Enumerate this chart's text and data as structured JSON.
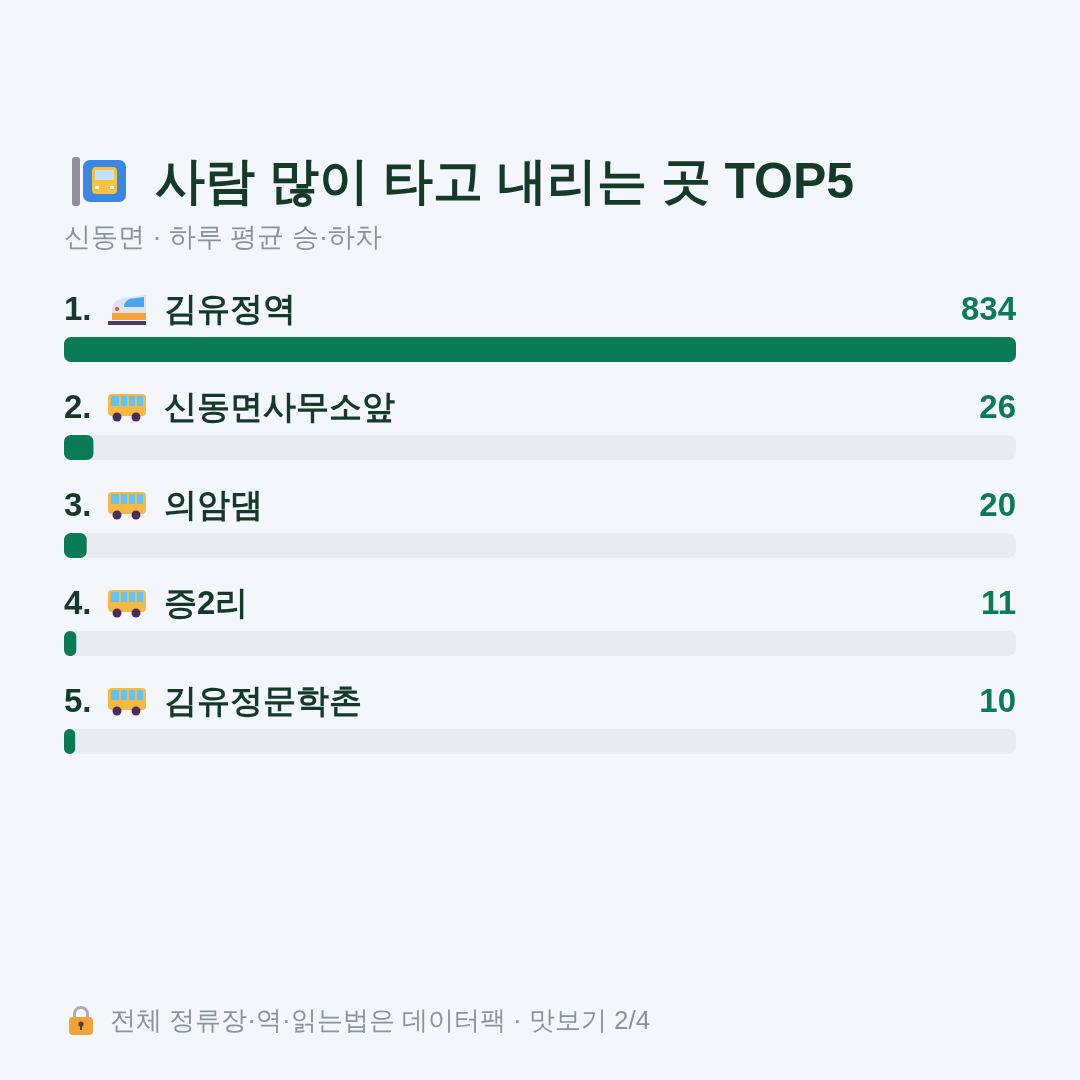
{
  "chart_data": {
    "type": "bar",
    "orientation": "horizontal",
    "title": "사람 많이 타고 내리는 곳 TOP5",
    "subtitle": "신동면 · 하루 평균 승·하차",
    "categories": [
      "1. 김유정역",
      "2. 신동면사무소앞",
      "3. 의암댐",
      "4. 증2리",
      "5. 김유정문학촌"
    ],
    "values": [
      834,
      26,
      20,
      11,
      10
    ],
    "color": "#0b7b55",
    "data_labels": true,
    "tick_labels": "y",
    "annotations": [
      "전체 정류장·역·읽는법은 데이터팩 · 맛보기 2/4"
    ]
  }
}
